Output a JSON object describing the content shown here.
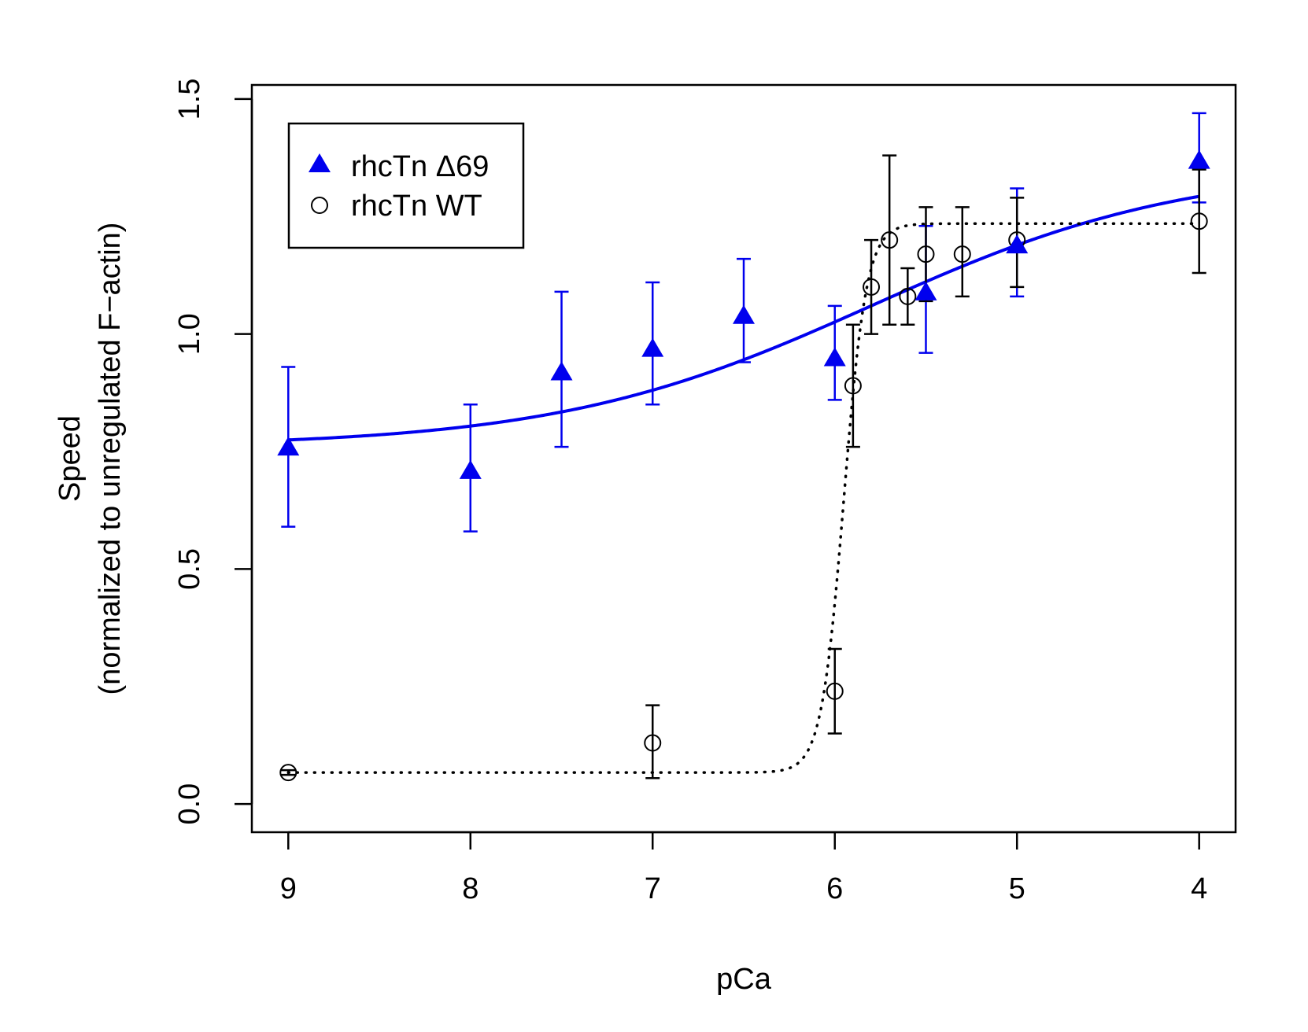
{
  "chart_data": {
    "type": "scatter",
    "title": "",
    "xlabel": "pCa",
    "ylabel_line1": "Speed",
    "ylabel_line2": "(normalized to unregulated F−actin)",
    "xlim": [
      9.2,
      3.8
    ],
    "ylim": [
      -0.06,
      1.53
    ],
    "x_reversed": true,
    "xticks": [
      9,
      8,
      7,
      6,
      5,
      4
    ],
    "xtick_labels": [
      "9",
      "8",
      "7",
      "6",
      "5",
      "4"
    ],
    "yticks": [
      0.0,
      0.5,
      1.0,
      1.5
    ],
    "ytick_labels": [
      "0.0",
      "0.5",
      "1.0",
      "1.5"
    ],
    "grid": false,
    "legend_position": "top-left",
    "series": [
      {
        "name": "rhcTn Δ69",
        "marker": "filled-triangle",
        "color": "#0000ee",
        "fit_line": "solid",
        "points": [
          {
            "x": 9.0,
            "y": 0.76,
            "lo": 0.59,
            "hi": 0.93
          },
          {
            "x": 8.0,
            "y": 0.71,
            "lo": 0.58,
            "hi": 0.85
          },
          {
            "x": 7.5,
            "y": 0.92,
            "lo": 0.76,
            "hi": 1.09
          },
          {
            "x": 7.0,
            "y": 0.97,
            "lo": 0.85,
            "hi": 1.11
          },
          {
            "x": 6.5,
            "y": 1.04,
            "lo": 0.94,
            "hi": 1.16
          },
          {
            "x": 6.0,
            "y": 0.95,
            "lo": 0.86,
            "hi": 1.06
          },
          {
            "x": 5.5,
            "y": 1.09,
            "lo": 0.96,
            "hi": 1.23
          },
          {
            "x": 5.0,
            "y": 1.19,
            "lo": 1.08,
            "hi": 1.31
          },
          {
            "x": 4.0,
            "y": 1.37,
            "lo": 1.28,
            "hi": 1.47
          }
        ],
        "fit": {
          "bottom": 0.76,
          "top": 1.36,
          "pCa50": 5.8,
          "hill": 0.5
        }
      },
      {
        "name": "rhcTn WT",
        "marker": "open-circle",
        "color": "#000000",
        "fit_line": "dotted",
        "points": [
          {
            "x": 9.0,
            "y": 0.067,
            "lo": 0.062,
            "hi": 0.072
          },
          {
            "x": 7.0,
            "y": 0.13,
            "lo": 0.055,
            "hi": 0.21
          },
          {
            "x": 6.0,
            "y": 0.24,
            "lo": 0.15,
            "hi": 0.33
          },
          {
            "x": 5.9,
            "y": 0.89,
            "lo": 0.76,
            "hi": 1.02
          },
          {
            "x": 5.8,
            "y": 1.1,
            "lo": 1.0,
            "hi": 1.2
          },
          {
            "x": 5.7,
            "y": 1.2,
            "lo": 1.02,
            "hi": 1.38
          },
          {
            "x": 5.6,
            "y": 1.08,
            "lo": 1.02,
            "hi": 1.14
          },
          {
            "x": 5.5,
            "y": 1.17,
            "lo": 1.07,
            "hi": 1.27
          },
          {
            "x": 5.3,
            "y": 1.17,
            "lo": 1.08,
            "hi": 1.27
          },
          {
            "x": 5.0,
            "y": 1.2,
            "lo": 1.1,
            "hi": 1.29
          },
          {
            "x": 4.0,
            "y": 1.24,
            "lo": 1.13,
            "hi": 1.35
          }
        ],
        "fit": {
          "bottom": 0.067,
          "top": 1.235,
          "pCa50": 5.95,
          "hill": 7
        }
      }
    ]
  }
}
